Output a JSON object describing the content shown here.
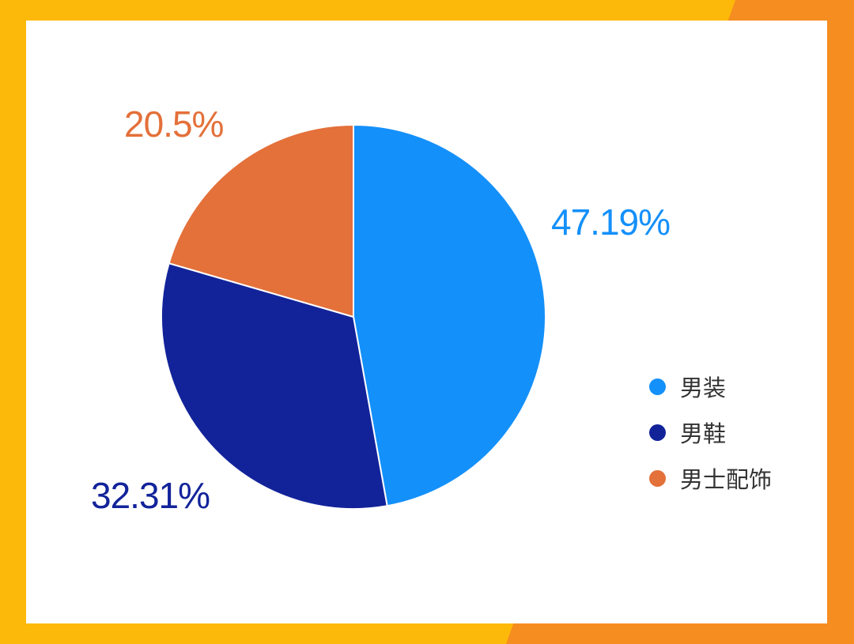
{
  "chart_data": {
    "type": "pie",
    "categories": [
      "男装",
      "男鞋",
      "男士配饰"
    ],
    "values": [
      47.19,
      32.31,
      20.5
    ],
    "data_labels": [
      "47.19%",
      "32.31%",
      "20.5%"
    ],
    "colors": [
      "#1490fa",
      "#12239a",
      "#e4703a"
    ],
    "legend_position": "right",
    "start_angle": "top, clockwise"
  },
  "theme": {
    "background_left": "#fdb909",
    "background_right": "#f68d20",
    "card": "#ffffff",
    "slice_border": "#ffffff"
  }
}
